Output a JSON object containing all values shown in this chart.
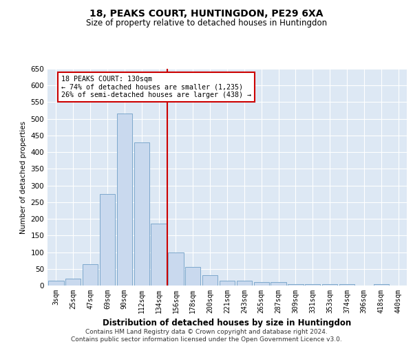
{
  "title": "18, PEAKS COURT, HUNTINGDON, PE29 6XA",
  "subtitle": "Size of property relative to detached houses in Huntingdon",
  "xlabel": "Distribution of detached houses by size in Huntingdon",
  "ylabel": "Number of detached properties",
  "annotation_line1": "18 PEAKS COURT: 130sqm",
  "annotation_line2": "← 74% of detached houses are smaller (1,235)",
  "annotation_line3": "26% of semi-detached houses are larger (438) →",
  "categories": [
    "3sqm",
    "25sqm",
    "47sqm",
    "69sqm",
    "90sqm",
    "112sqm",
    "134sqm",
    "156sqm",
    "178sqm",
    "200sqm",
    "221sqm",
    "243sqm",
    "265sqm",
    "287sqm",
    "309sqm",
    "331sqm",
    "353sqm",
    "374sqm",
    "396sqm",
    "418sqm",
    "440sqm"
  ],
  "values": [
    15,
    20,
    65,
    275,
    515,
    430,
    185,
    100,
    55,
    30,
    15,
    15,
    10,
    10,
    5,
    5,
    5,
    5,
    0,
    5,
    0
  ],
  "bar_color": "#c9d9ee",
  "bar_edge_color": "#7da8cc",
  "vline_color": "#cc0000",
  "vline_pos": 6.5,
  "ylim": [
    0,
    650
  ],
  "yticks": [
    0,
    50,
    100,
    150,
    200,
    250,
    300,
    350,
    400,
    450,
    500,
    550,
    600,
    650
  ],
  "background_color": "#dde8f4",
  "grid_color": "#ffffff",
  "footer_line1": "Contains HM Land Registry data © Crown copyright and database right 2024.",
  "footer_line2": "Contains public sector information licensed under the Open Government Licence v3.0."
}
